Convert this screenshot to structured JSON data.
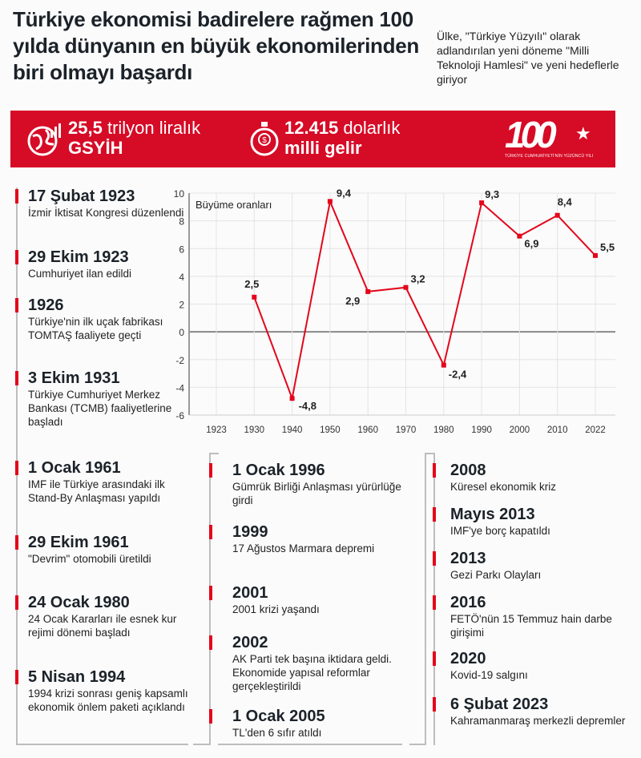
{
  "header": {
    "title": "Türkiye ekonomisi badirelere rağmen 100 yılda dünyanın en büyük ekonomilerinden biri olmayı başardı",
    "subtitle": "Ülke, \"Türkiye Yüzyılı\" olarak adlandırılan yeni döneme \"Milli Teknoloji Hamlesi\" ve yeni hedeflerle giriyor"
  },
  "banner": {
    "stat1": {
      "value": "25,5",
      "unit": "trilyon liralık",
      "label": "GSYİH",
      "icon": "globe-growth-icon"
    },
    "stat2": {
      "value": "12.415",
      "unit": "dolarlık",
      "label": "milli gelir",
      "icon": "money-bag-icon"
    },
    "logo": {
      "number": "100",
      "caption": "TÜRKİYE CUMHURİYETİ'NİN YÜZÜNCÜ YILI"
    },
    "color": "#d60b26"
  },
  "chart_data": {
    "type": "line",
    "title": "Büyüme oranları",
    "categories": [
      "1923",
      "1930",
      "1940",
      "1950",
      "1960",
      "1970",
      "1980",
      "1990",
      "2000",
      "2010",
      "2022"
    ],
    "values": [
      null,
      2.5,
      -4.8,
      9.4,
      2.9,
      3.2,
      -2.4,
      9.3,
      6.9,
      8.4,
      5.5
    ],
    "labels": [
      "",
      "2,5",
      "-4,8",
      "9,4",
      "2,9",
      "3,2",
      "-2,4",
      "9,3",
      "6,9",
      "8,4",
      "5,5"
    ],
    "ylim": [
      -6,
      10
    ],
    "yticks": [
      "-6",
      "-4",
      "-2",
      "0",
      "2",
      "4",
      "6",
      "8",
      "10"
    ],
    "grid": true,
    "color": "#e3061b"
  },
  "timeline": {
    "col1": [
      {
        "date": "17 Şubat 1923",
        "text": "İzmir İktisat Kongresi düzenlendi"
      },
      {
        "date": "29 Ekim 1923",
        "text": "Cumhuriyet ilan edildi"
      },
      {
        "date": "1926",
        "text": "Türkiye'nin ilk uçak fabrikası TOMTAŞ faaliyete geçti"
      },
      {
        "date": "3 Ekim 1931",
        "text": "Türkiye Cumhuriyet Merkez Bankası (TCMB) faaliyetlerine başladı"
      },
      {
        "date": "1 Ocak 1961",
        "text": "IMF ile Türkiye arasındaki ilk Stand-By Anlaşması yapıldı"
      },
      {
        "date": "29 Ekim 1961",
        "text": "\"Devrim\" otomobili üretildi"
      },
      {
        "date": "24 Ocak 1980",
        "text": "24 Ocak Kararları ile esnek kur rejimi dönemi başladı"
      },
      {
        "date": "5 Nisan 1994",
        "text": "1994 krizi sonrası geniş kapsamlı ekonomik önlem paketi açıklandı"
      }
    ],
    "col2": [
      {
        "date": "1 Ocak 1996",
        "text": "Gümrük Birliği Anlaşması yürürlüğe girdi"
      },
      {
        "date": "1999",
        "text": "17 Ağustos Marmara depremi"
      },
      {
        "date": "2001",
        "text": "2001 krizi yaşandı"
      },
      {
        "date": "2002",
        "text": "AK Parti tek başına iktidara geldi. Ekonomide yapısal reformlar gerçekleştirildi"
      },
      {
        "date": "1 Ocak 2005",
        "text": "TL'den 6 sıfır atıldı"
      }
    ],
    "col3": [
      {
        "date": "2008",
        "text": "Küresel ekonomik kriz"
      },
      {
        "date": "Mayıs 2013",
        "text": "IMF'ye borç kapatıldı"
      },
      {
        "date": "2013",
        "text": "Gezi Parkı Olayları"
      },
      {
        "date": "2016",
        "text": "FETÖ'nün 15 Temmuz hain darbe girişimi"
      },
      {
        "date": "2020",
        "text": "Kovid-19 salgını"
      },
      {
        "date": "6 Şubat 2023",
        "text": "Kahramanmaraş merkezli depremler"
      }
    ]
  }
}
